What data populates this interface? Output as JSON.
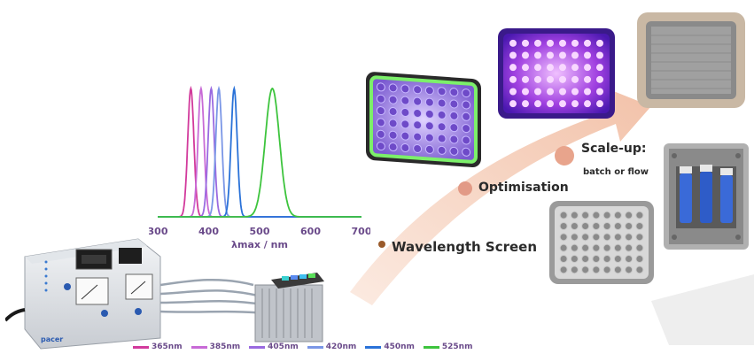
{
  "chart_data": {
    "type": "line",
    "xlabel": "λmax / nm",
    "x_ticks": [
      300,
      400,
      500,
      600,
      700
    ],
    "xlim": [
      300,
      700
    ],
    "series": [
      {
        "name": "365nm",
        "peak": 365,
        "color": "#d23a9c"
      },
      {
        "name": "385nm",
        "peak": 385,
        "color": "#c86ad6"
      },
      {
        "name": "405nm",
        "peak": 405,
        "color": "#9a6ae0"
      },
      {
        "name": "420nm",
        "peak": 420,
        "color": "#7a96e6"
      },
      {
        "name": "450nm",
        "peak": 450,
        "color": "#2a72d8"
      },
      {
        "name": "525nm",
        "peak": 525,
        "color": "#3dc43d"
      }
    ]
  },
  "workflow": {
    "step1": "Wavelength Screen",
    "step2": "Optimisation",
    "step3_title": "Scale-up:",
    "step3_sub": "batch or flow"
  },
  "device": {
    "brand": "pacer"
  },
  "colors": {
    "arrow": "#f3c9b0",
    "dot_small": "#9a5a2a",
    "dot_mid": "#e29a86",
    "dot_large": "#e8a48c"
  }
}
